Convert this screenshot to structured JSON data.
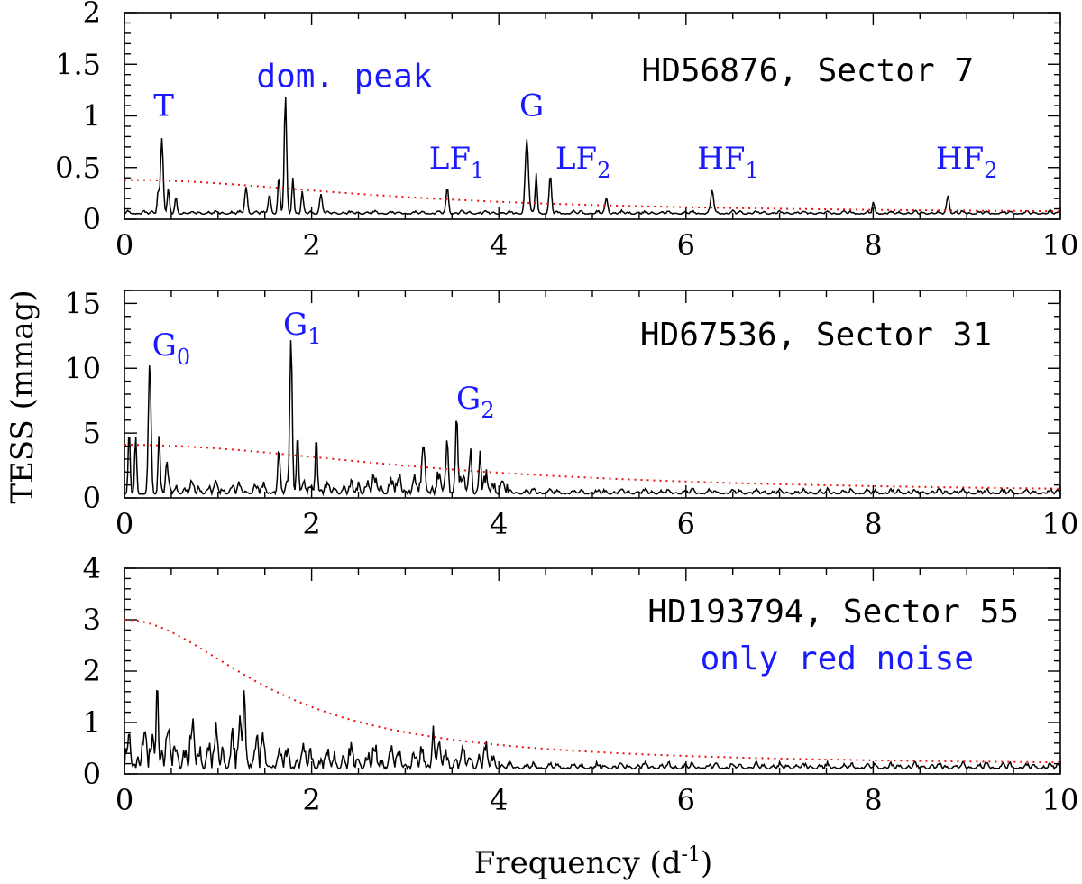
{
  "figure": {
    "ylabel": "TESS (mmag)",
    "xlabel": "Frequency (d",
    "xlabel_sup": "-1",
    "xlabel_end": ")"
  },
  "chart_data": [
    {
      "type": "line",
      "title": "HD56876, Sector 7",
      "xlim": [
        0,
        10
      ],
      "ylim": [
        0,
        2
      ],
      "xticks": [
        0,
        2,
        4,
        6,
        8,
        10
      ],
      "xticklabels": [
        "0",
        "2",
        "4",
        "6",
        "8",
        "10"
      ],
      "yticks": [
        0,
        0.5,
        1,
        1.5,
        2
      ],
      "yticklabels": [
        "0",
        "0.5",
        "1",
        "1.5",
        "2"
      ],
      "baseline": 0.05,
      "peaks": [
        {
          "x": 0.4,
          "y": 0.72,
          "w": 0.02
        },
        {
          "x": 0.36,
          "y": 0.22,
          "w": 0.015
        },
        {
          "x": 0.47,
          "y": 0.22,
          "w": 0.015
        },
        {
          "x": 0.55,
          "y": 0.15,
          "w": 0.015
        },
        {
          "x": 1.3,
          "y": 0.25,
          "w": 0.02
        },
        {
          "x": 1.55,
          "y": 0.18,
          "w": 0.02
        },
        {
          "x": 1.65,
          "y": 0.35,
          "w": 0.015
        },
        {
          "x": 1.72,
          "y": 1.12,
          "w": 0.018
        },
        {
          "x": 1.8,
          "y": 0.35,
          "w": 0.015
        },
        {
          "x": 1.9,
          "y": 0.2,
          "w": 0.015
        },
        {
          "x": 2.1,
          "y": 0.18,
          "w": 0.02
        },
        {
          "x": 3.45,
          "y": 0.25,
          "w": 0.018
        },
        {
          "x": 4.3,
          "y": 0.7,
          "w": 0.025
        },
        {
          "x": 4.4,
          "y": 0.38,
          "w": 0.015
        },
        {
          "x": 4.55,
          "y": 0.36,
          "w": 0.018
        },
        {
          "x": 5.15,
          "y": 0.14,
          "w": 0.02
        },
        {
          "x": 6.28,
          "y": 0.23,
          "w": 0.02
        },
        {
          "x": 8.0,
          "y": 0.1,
          "w": 0.015
        },
        {
          "x": 8.8,
          "y": 0.17,
          "w": 0.02
        }
      ],
      "noise_level": 0.04,
      "red_noise": {
        "a": 0.33,
        "c": 0.05,
        "tau": 6.0,
        "gamma": 2.0
      },
      "annotations": [
        {
          "text": "T",
          "sub": "",
          "x": 0.42,
          "y": 1.0
        },
        {
          "text": "dom. peak",
          "sub": "",
          "x": 2.35,
          "y": 1.28,
          "mono": true
        },
        {
          "text": "G",
          "sub": "",
          "x": 4.35,
          "y": 1.0
        },
        {
          "text": "LF",
          "sub": "1",
          "x": 3.55,
          "y": 0.49
        },
        {
          "text": "LF",
          "sub": "2",
          "x": 4.9,
          "y": 0.49
        },
        {
          "text": "HF",
          "sub": "1",
          "x": 6.45,
          "y": 0.49
        },
        {
          "text": "HF",
          "sub": "2",
          "x": 9.0,
          "y": 0.49
        }
      ]
    },
    {
      "type": "line",
      "title": "HD67536, Sector 31",
      "xlim": [
        0,
        10
      ],
      "ylim": [
        0,
        16
      ],
      "xticks": [
        0,
        2,
        4,
        6,
        8,
        10
      ],
      "xticklabels": [
        "0",
        "2",
        "4",
        "6",
        "8",
        "10"
      ],
      "yticks": [
        0,
        5,
        10,
        15
      ],
      "yticklabels": [
        "0",
        "5",
        "10",
        "15"
      ],
      "baseline": 0.3,
      "peaks": [
        {
          "x": 0.05,
          "y": 5.0,
          "w": 0.015
        },
        {
          "x": 0.12,
          "y": 4.5,
          "w": 0.015
        },
        {
          "x": 0.27,
          "y": 10.2,
          "w": 0.02
        },
        {
          "x": 0.37,
          "y": 4.7,
          "w": 0.015
        },
        {
          "x": 0.45,
          "y": 2.0,
          "w": 0.015
        },
        {
          "x": 1.65,
          "y": 3.0,
          "w": 0.015
        },
        {
          "x": 1.78,
          "y": 12.0,
          "w": 0.018
        },
        {
          "x": 1.85,
          "y": 4.5,
          "w": 0.015
        },
        {
          "x": 2.05,
          "y": 4.5,
          "w": 0.015
        },
        {
          "x": 3.2,
          "y": 2.8,
          "w": 0.02
        },
        {
          "x": 3.45,
          "y": 3.3,
          "w": 0.015
        },
        {
          "x": 3.55,
          "y": 5.4,
          "w": 0.018
        },
        {
          "x": 3.7,
          "y": 3.0,
          "w": 0.015
        },
        {
          "x": 3.8,
          "y": 2.5,
          "w": 0.015
        }
      ],
      "noise_bands": [
        {
          "from": 0.4,
          "to": 2.5,
          "amp": 1.2
        },
        {
          "from": 2.5,
          "to": 4.1,
          "amp": 2.2
        },
        {
          "from": 4.1,
          "to": 10,
          "amp": 0.5
        }
      ],
      "red_noise": {
        "a": 3.8,
        "c": 0.3,
        "tau": 7.0,
        "gamma": 2.0
      },
      "annotations": [
        {
          "text": "G",
          "sub": "0",
          "x": 0.5,
          "y": 11.0
        },
        {
          "text": "G",
          "sub": "1",
          "x": 1.9,
          "y": 12.6
        },
        {
          "text": "G",
          "sub": "2",
          "x": 3.75,
          "y": 6.9
        }
      ]
    },
    {
      "type": "line",
      "title": "HD193794, Sector 55",
      "subtitle": "only red noise",
      "xlim": [
        0,
        10
      ],
      "ylim": [
        0,
        4
      ],
      "xticks": [
        0,
        2,
        4,
        6,
        8,
        10
      ],
      "xticklabels": [
        "0",
        "2",
        "4",
        "6",
        "8",
        "10"
      ],
      "yticks": [
        0,
        1,
        2,
        3,
        4
      ],
      "yticklabels": [
        "0",
        "1",
        "2",
        "3",
        "4"
      ],
      "baseline": 0.1,
      "peaks": [
        {
          "x": 0.35,
          "y": 1.7,
          "w": 0.015
        },
        {
          "x": 1.28,
          "y": 1.5,
          "w": 0.015
        },
        {
          "x": 3.3,
          "y": 0.75,
          "w": 0.015
        }
      ],
      "noise_bands": [
        {
          "from": 0,
          "to": 1.5,
          "amp": 1.1
        },
        {
          "from": 1.5,
          "to": 4.0,
          "amp": 0.6
        },
        {
          "from": 4.0,
          "to": 10,
          "amp": 0.15
        }
      ],
      "red_noise": {
        "a": 2.85,
        "c": 0.15,
        "tau": 3.3,
        "gamma": 2.0
      },
      "annotations": []
    }
  ]
}
